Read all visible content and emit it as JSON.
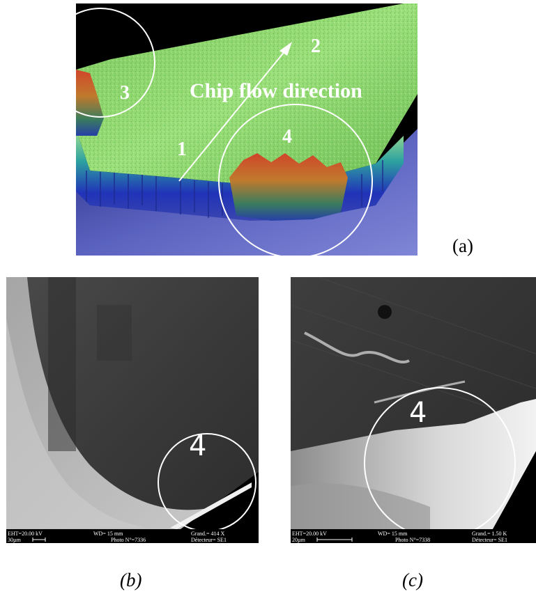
{
  "panel_a": {
    "labels": {
      "one": "1",
      "two": "2",
      "three": "3",
      "four": "4"
    },
    "flow_label": "Chip flow direction",
    "caption": "(a)"
  },
  "panel_b": {
    "label": "4",
    "caption": "(b)",
    "databar": {
      "eht": "EHT=20.00 kV",
      "scale": "30µm",
      "wd": "WD=  15 mm",
      "photo": "Photo N°=7336",
      "grand": "Grand.=   414  X",
      "detector": "Détecteur= SE1"
    }
  },
  "panel_c": {
    "label": "4",
    "caption": "(c)",
    "databar": {
      "eht": "EHT=20.00 kV",
      "scale": "20µm",
      "wd": "WD=  15 mm",
      "photo": "Photo N°=7338",
      "grand": "Grand.=  1.50 K",
      "detector": "Détecteur= SE1"
    }
  }
}
